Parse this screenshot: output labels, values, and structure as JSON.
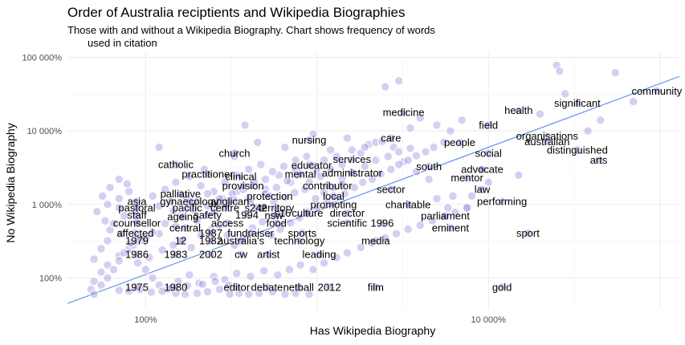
{
  "chart_data": {
    "type": "scatter",
    "title": "Order of Australia reciptients and Wikipedia Biographies",
    "subtitle_lines": [
      "Those with and without a Wikipedia Biography. Chart shows frequency of words",
      "used in citation"
    ],
    "xlabel": "Has Wikipedia Biography",
    "ylabel": "No Wikipedia Biography",
    "xscale": "log",
    "yscale": "log",
    "xlim": [
      0.35,
      1300
    ],
    "ylim": [
      0.37,
      1150
    ],
    "xticks": [
      {
        "value": 1,
        "label": "100%"
      },
      {
        "value": 100,
        "label": "10 000%"
      }
    ],
    "yticks": [
      {
        "value": 1,
        "label": "100%"
      },
      {
        "value": 10,
        "label": "1 000%"
      },
      {
        "value": 100,
        "label": "10 000%"
      },
      {
        "value": 1000,
        "label": "100 000%"
      }
    ],
    "grid": true,
    "point_color": "#9b84e0",
    "trend_color": "#6495ed",
    "trend_line": [
      [
        0.35,
        0.45
      ],
      [
        1300,
        550
      ]
    ],
    "labeled_points": [
      {
        "word": "community",
        "x": 960,
        "y": 350
      },
      {
        "word": "significant",
        "x": 330,
        "y": 240
      },
      {
        "word": "health",
        "x": 150,
        "y": 190
      },
      {
        "word": "medicine",
        "x": 32,
        "y": 180
      },
      {
        "word": "field",
        "x": 100,
        "y": 120
      },
      {
        "word": "organisations",
        "x": 220,
        "y": 85
      },
      {
        "word": "nursing",
        "x": 9,
        "y": 75
      },
      {
        "word": "care",
        "x": 27,
        "y": 80
      },
      {
        "word": "people",
        "x": 68,
        "y": 70
      },
      {
        "word": "australian",
        "x": 220,
        "y": 72
      },
      {
        "word": "distinguished",
        "x": 330,
        "y": 55
      },
      {
        "word": "church",
        "x": 3.3,
        "y": 50
      },
      {
        "word": "social",
        "x": 100,
        "y": 50
      },
      {
        "word": "arts",
        "x": 440,
        "y": 40
      },
      {
        "word": "services",
        "x": 16,
        "y": 41
      },
      {
        "word": "catholic",
        "x": 1.5,
        "y": 35
      },
      {
        "word": "educator",
        "x": 9.3,
        "y": 34
      },
      {
        "word": "south",
        "x": 45,
        "y": 33
      },
      {
        "word": "advocate",
        "x": 92,
        "y": 30
      },
      {
        "word": "practitioner",
        "x": 2.3,
        "y": 26
      },
      {
        "word": "mental",
        "x": 8,
        "y": 26
      },
      {
        "word": "administrator",
        "x": 16,
        "y": 27
      },
      {
        "word": "clinical",
        "x": 3.6,
        "y": 24
      },
      {
        "word": "mentor",
        "x": 75,
        "y": 23
      },
      {
        "word": "provision",
        "x": 3.7,
        "y": 18
      },
      {
        "word": "contributor",
        "x": 11.5,
        "y": 18
      },
      {
        "word": "sector",
        "x": 27,
        "y": 16
      },
      {
        "word": "law",
        "x": 92,
        "y": 16
      },
      {
        "word": "palliative",
        "x": 1.6,
        "y": 14
      },
      {
        "word": "protection",
        "x": 5.3,
        "y": 13
      },
      {
        "word": "local",
        "x": 12.5,
        "y": 13
      },
      {
        "word": "performing",
        "x": 120,
        "y": 11
      },
      {
        "word": "asia",
        "x": 0.89,
        "y": 11
      },
      {
        "word": "gynaecology",
        "x": 1.8,
        "y": 11
      },
      {
        "word": "anglican",
        "x": 3.1,
        "y": 11
      },
      {
        "word": "promoting",
        "x": 12.5,
        "y": 10
      },
      {
        "word": "charitable",
        "x": 34,
        "y": 10
      },
      {
        "word": "pastoral",
        "x": 0.89,
        "y": 9
      },
      {
        "word": "pacific",
        "x": 1.75,
        "y": 9
      },
      {
        "word": "centre",
        "x": 2.9,
        "y": 9
      },
      {
        "word": "s242",
        "x": 4.4,
        "y": 9
      },
      {
        "word": "territory",
        "x": 5.8,
        "y": 9
      },
      {
        "word": "staff",
        "x": 0.89,
        "y": 7.2
      },
      {
        "word": "1994",
        "x": 3.9,
        "y": 7.2
      },
      {
        "word": "culture",
        "x": 8.8,
        "y": 7.6
      },
      {
        "word": "director",
        "x": 15,
        "y": 7.6
      },
      {
        "word": "safety",
        "x": 2.3,
        "y": 7.2
      },
      {
        "word": "s16",
        "x": 6.3,
        "y": 7.6
      },
      {
        "word": "nsw",
        "x": 5.6,
        "y": 7.1
      },
      {
        "word": "ageing",
        "x": 1.65,
        "y": 6.8
      },
      {
        "word": "parliament",
        "x": 56,
        "y": 7.0
      },
      {
        "word": "counsellor",
        "x": 0.89,
        "y": 5.6
      },
      {
        "word": "access",
        "x": 3.0,
        "y": 5.6
      },
      {
        "word": "food",
        "x": 5.8,
        "y": 5.6
      },
      {
        "word": "scientific",
        "x": 15,
        "y": 5.6
      },
      {
        "word": "1996",
        "x": 24,
        "y": 5.6
      },
      {
        "word": "central",
        "x": 1.7,
        "y": 4.8
      },
      {
        "word": "eminent",
        "x": 60,
        "y": 4.8
      },
      {
        "word": "affected",
        "x": 0.87,
        "y": 4.1
      },
      {
        "word": "1987",
        "x": 2.4,
        "y": 4.1
      },
      {
        "word": "fundraiser",
        "x": 4.1,
        "y": 4.1
      },
      {
        "word": "sports",
        "x": 8.2,
        "y": 4.1
      },
      {
        "word": "sport",
        "x": 170,
        "y": 4.1
      },
      {
        "word": "1979",
        "x": 0.89,
        "y": 3.2
      },
      {
        "word": "12",
        "x": 1.6,
        "y": 3.2
      },
      {
        "word": "1982",
        "x": 2.4,
        "y": 3.2
      },
      {
        "word": "australia's",
        "x": 3.6,
        "y": 3.2
      },
      {
        "word": "technology",
        "x": 7.9,
        "y": 3.2
      },
      {
        "word": "media",
        "x": 22,
        "y": 3.2
      },
      {
        "word": "1986",
        "x": 0.89,
        "y": 2.1
      },
      {
        "word": "1983",
        "x": 1.5,
        "y": 2.1
      },
      {
        "word": "2002",
        "x": 2.4,
        "y": 2.1
      },
      {
        "word": "cw",
        "x": 3.6,
        "y": 2.1
      },
      {
        "word": "artist",
        "x": 5.2,
        "y": 2.1
      },
      {
        "word": "leading",
        "x": 10.3,
        "y": 2.1
      },
      {
        "word": "1975",
        "x": 0.89,
        "y": 0.75
      },
      {
        "word": "1980",
        "x": 1.5,
        "y": 0.75
      },
      {
        "word": "editor",
        "x": 3.4,
        "y": 0.75
      },
      {
        "word": "debate",
        "x": 5.1,
        "y": 0.75
      },
      {
        "word": "netball",
        "x": 7.8,
        "y": 0.75
      },
      {
        "word": "2012",
        "x": 11.8,
        "y": 0.75
      },
      {
        "word": "film",
        "x": 22,
        "y": 0.75
      },
      {
        "word": "gold",
        "x": 120,
        "y": 0.75
      }
    ],
    "unlabeled_points": [
      [
        0.9,
        6
      ],
      [
        1.2,
        60
      ],
      [
        2.2,
        30
      ],
      [
        3.3,
        45
      ],
      [
        3.8,
        120
      ],
      [
        4.5,
        70
      ],
      [
        6.5,
        60
      ],
      [
        9.5,
        90
      ],
      [
        12,
        55
      ],
      [
        15,
        80
      ],
      [
        20,
        65
      ],
      [
        25,
        400
      ],
      [
        30,
        480
      ],
      [
        35,
        110
      ],
      [
        40,
        150
      ],
      [
        50,
        120
      ],
      [
        60,
        100
      ],
      [
        70,
        140
      ],
      [
        90,
        30
      ],
      [
        100,
        20
      ],
      [
        150,
        25
      ],
      [
        200,
        170
      ],
      [
        250,
        780
      ],
      [
        260,
        650
      ],
      [
        280,
        320
      ],
      [
        380,
        100
      ],
      [
        450,
        140
      ],
      [
        550,
        620
      ],
      [
        700,
        250
      ],
      [
        80,
        13
      ],
      [
        62,
        13
      ],
      [
        50,
        12
      ],
      [
        58,
        9
      ],
      [
        75,
        9
      ],
      [
        45,
        22
      ],
      [
        38,
        28
      ],
      [
        32,
        38
      ],
      [
        28,
        60
      ],
      [
        22,
        70
      ],
      [
        18,
        50
      ],
      [
        14,
        35
      ],
      [
        10,
        28
      ],
      [
        7,
        20
      ],
      [
        5,
        16
      ],
      [
        4,
        12
      ],
      [
        3,
        10
      ],
      [
        2.5,
        8
      ],
      [
        2,
        6
      ],
      [
        1.5,
        5
      ],
      [
        1.2,
        4
      ],
      [
        1,
        3.5
      ],
      [
        0.8,
        2.5
      ],
      [
        0.7,
        2
      ],
      [
        0.6,
        1.5
      ],
      [
        0.55,
        1.2
      ],
      [
        0.5,
        0.9
      ],
      [
        0.48,
        0.7
      ],
      [
        0.5,
        0.6
      ],
      [
        0.55,
        0.8
      ],
      [
        0.6,
        1
      ],
      [
        0.65,
        1.3
      ],
      [
        0.7,
        1.7
      ],
      [
        0.75,
        2.2
      ],
      [
        0.85,
        2.8
      ],
      [
        0.95,
        3.3
      ],
      [
        1.1,
        4.2
      ],
      [
        1.3,
        5.5
      ],
      [
        1.6,
        7
      ],
      [
        1.9,
        8.5
      ],
      [
        2.3,
        9.5
      ],
      [
        2.8,
        12
      ],
      [
        3.4,
        15
      ],
      [
        4.2,
        18
      ],
      [
        5,
        22
      ],
      [
        6,
        25
      ],
      [
        7.5,
        30
      ],
      [
        9,
        35
      ],
      [
        11,
        40
      ],
      [
        13,
        45
      ],
      [
        16,
        55
      ],
      [
        19,
        60
      ],
      [
        24,
        72
      ],
      [
        0.5,
        1.8
      ],
      [
        0.55,
        2.5
      ],
      [
        0.6,
        3.2
      ],
      [
        0.62,
        4.5
      ],
      [
        0.58,
        6
      ],
      [
        0.52,
        8
      ],
      [
        0.6,
        10
      ],
      [
        0.7,
        12
      ],
      [
        0.8,
        15
      ],
      [
        0.7,
        9
      ],
      [
        0.75,
        7
      ],
      [
        0.65,
        5.5
      ],
      [
        0.72,
        4
      ],
      [
        0.82,
        3
      ],
      [
        0.9,
        1.6
      ],
      [
        1,
        1.3
      ],
      [
        1.1,
        1
      ],
      [
        1.2,
        0.8
      ],
      [
        1.35,
        0.7
      ],
      [
        1.5,
        0.62
      ],
      [
        1.7,
        0.6
      ],
      [
        2,
        0.62
      ],
      [
        2.3,
        0.65
      ],
      [
        2.7,
        0.7
      ],
      [
        3.1,
        0.6
      ],
      [
        3.5,
        0.62
      ],
      [
        4,
        0.6
      ],
      [
        4.6,
        0.62
      ],
      [
        5.5,
        0.65
      ],
      [
        6.5,
        0.6
      ],
      [
        7.5,
        0.62
      ],
      [
        9,
        0.6
      ],
      [
        1.05,
        1.9
      ],
      [
        1.25,
        2.4
      ],
      [
        1.45,
        2.8
      ],
      [
        1.65,
        3.3
      ],
      [
        1.85,
        2.6
      ],
      [
        2.1,
        3.8
      ],
      [
        2.4,
        4.5
      ],
      [
        2.7,
        5.2
      ],
      [
        3.0,
        3.8
      ],
      [
        3.3,
        2.8
      ],
      [
        3.7,
        3.4
      ],
      [
        4.2,
        4.8
      ],
      [
        4.8,
        5.8
      ],
      [
        5.4,
        3.8
      ],
      [
        6.1,
        4.6
      ],
      [
        7,
        5.6
      ],
      [
        7.9,
        6.6
      ],
      [
        8.9,
        8
      ],
      [
        10,
        9
      ],
      [
        11.5,
        11
      ],
      [
        13,
        12
      ],
      [
        14.5,
        14
      ],
      [
        16.5,
        17
      ],
      [
        18.5,
        20
      ],
      [
        21,
        22
      ],
      [
        23.5,
        26
      ],
      [
        27,
        30
      ],
      [
        30,
        35
      ],
      [
        34,
        40
      ],
      [
        38,
        46
      ],
      [
        43,
        52
      ],
      [
        48,
        60
      ],
      [
        55,
        70
      ],
      [
        1.1,
        13
      ],
      [
        1.3,
        16
      ],
      [
        1.5,
        20
      ],
      [
        1.8,
        24
      ],
      [
        2.1,
        18
      ],
      [
        2.5,
        15
      ],
      [
        2.9,
        20
      ],
      [
        3.4,
        25
      ],
      [
        4,
        30
      ],
      [
        4.7,
        35
      ],
      [
        5.5,
        28
      ],
      [
        6.4,
        33
      ],
      [
        7.5,
        40
      ],
      [
        8.7,
        45
      ],
      [
        1.4,
        11
      ],
      [
        1.7,
        13
      ],
      [
        2,
        11
      ],
      [
        2.3,
        14
      ],
      [
        2.7,
        12
      ],
      [
        3.2,
        14
      ],
      [
        3.7,
        16
      ],
      [
        4.3,
        20
      ],
      [
        5,
        14
      ],
      [
        5.8,
        17
      ],
      [
        6.7,
        21
      ],
      [
        7.8,
        25
      ],
      [
        9,
        20
      ],
      [
        10.5,
        24
      ],
      [
        12,
        30
      ],
      [
        14,
        22
      ],
      [
        16,
        27
      ],
      [
        19,
        33
      ],
      [
        22,
        40
      ],
      [
        26,
        45
      ],
      [
        30,
        52
      ],
      [
        35,
        58
      ],
      [
        1.2,
        9.5
      ],
      [
        1.45,
        8.2
      ],
      [
        1.9,
        10.5
      ],
      [
        2.6,
        10
      ],
      [
        3.3,
        11.5
      ],
      [
        4.1,
        10.5
      ],
      [
        4.8,
        9
      ],
      [
        5.6,
        11
      ],
      [
        6.5,
        12.5
      ],
      [
        7.4,
        14.5
      ],
      [
        8.5,
        16
      ],
      [
        9.8,
        12
      ],
      [
        11,
        14.5
      ],
      [
        12.5,
        17
      ],
      [
        14,
        19
      ],
      [
        0.56,
        13
      ],
      [
        0.62,
        17
      ],
      [
        0.7,
        22
      ],
      [
        0.78,
        19
      ],
      [
        0.86,
        8
      ],
      [
        1.55,
        0.9
      ],
      [
        1.8,
        1.1
      ],
      [
        2.05,
        0.85
      ],
      [
        2.5,
        1.05
      ],
      [
        2.9,
        0.95
      ],
      [
        3.4,
        1.15
      ],
      [
        4.1,
        1.05
      ],
      [
        4.9,
        1.25
      ],
      [
        5.9,
        1.1
      ],
      [
        6.9,
        1.3
      ],
      [
        8,
        1.5
      ],
      [
        9.5,
        1.3
      ],
      [
        11,
        1.6
      ],
      [
        13,
        1.9
      ],
      [
        15,
        2.2
      ],
      [
        18,
        2.6
      ],
      [
        21,
        3
      ],
      [
        25,
        3.5
      ],
      [
        29,
        4
      ],
      [
        34,
        4.6
      ],
      [
        40,
        5.2
      ],
      [
        47,
        6
      ],
      [
        55,
        6.8
      ],
      [
        64,
        7.8
      ],
      [
        75,
        9
      ],
      [
        0.7,
        0.68
      ],
      [
        0.8,
        0.66
      ],
      [
        0.93,
        0.7
      ],
      [
        1.08,
        0.64
      ],
      [
        1.25,
        0.66
      ],
      [
        1.42,
        0.74
      ],
      [
        1.75,
        0.78
      ],
      [
        2.15,
        0.82
      ],
      [
        2.55,
        0.9
      ],
      [
        3.05,
        0.8
      ]
    ]
  }
}
